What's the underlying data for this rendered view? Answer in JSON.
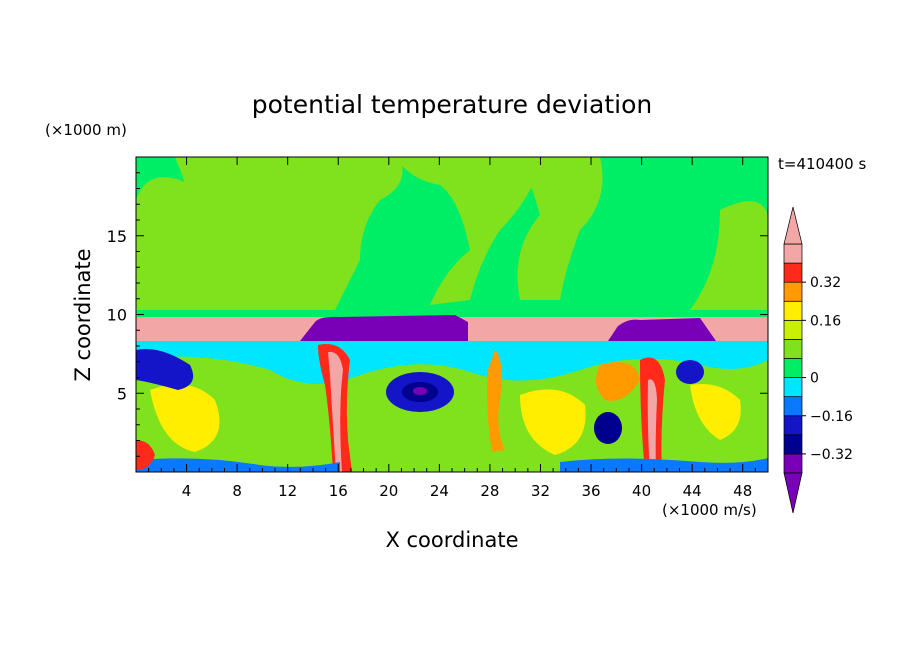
{
  "chart_data": {
    "type": "heatmap",
    "title": "potential temperature deviation",
    "xlabel": "X coordinate",
    "ylabel": "Z coordinate",
    "x_unit": "(×1000 m/s)",
    "y_unit": "(×1000 m)",
    "time_label": "t=410400 s",
    "xlim": [
      0,
      50
    ],
    "ylim": [
      0,
      20
    ],
    "x_ticks": [
      "4",
      "8",
      "12",
      "16",
      "20",
      "24",
      "28",
      "32",
      "36",
      "40",
      "44",
      "48"
    ],
    "y_ticks": [
      "5",
      "10",
      "15"
    ],
    "colorbar": {
      "levels": [
        {
          "lower": -0.4,
          "color": "#7a00b8"
        },
        {
          "lower": -0.32,
          "color": "#00008f"
        },
        {
          "lower": -0.24,
          "color": "#1414c8"
        },
        {
          "lower": -0.16,
          "color": "#0a78ff"
        },
        {
          "lower": -0.08,
          "color": "#00e6ff"
        },
        {
          "lower": 0.0,
          "color": "#00ee66"
        },
        {
          "lower": 0.04,
          "color": "#7fe21c"
        },
        {
          "lower": 0.08,
          "color": "#c8f000"
        },
        {
          "lower": 0.16,
          "color": "#ffee00"
        },
        {
          "lower": 0.24,
          "color": "#ff9a00"
        },
        {
          "lower": 0.32,
          "color": "#ff2a1a"
        },
        {
          "lower": 0.4,
          "color": "#f2a6a6"
        }
      ],
      "tick_labels": [
        "0.32",
        "0.16",
        "0",
        "−0.16",
        "−0.32"
      ],
      "under_color": "#7a00b8",
      "over_color": "#f2a6a6"
    }
  }
}
